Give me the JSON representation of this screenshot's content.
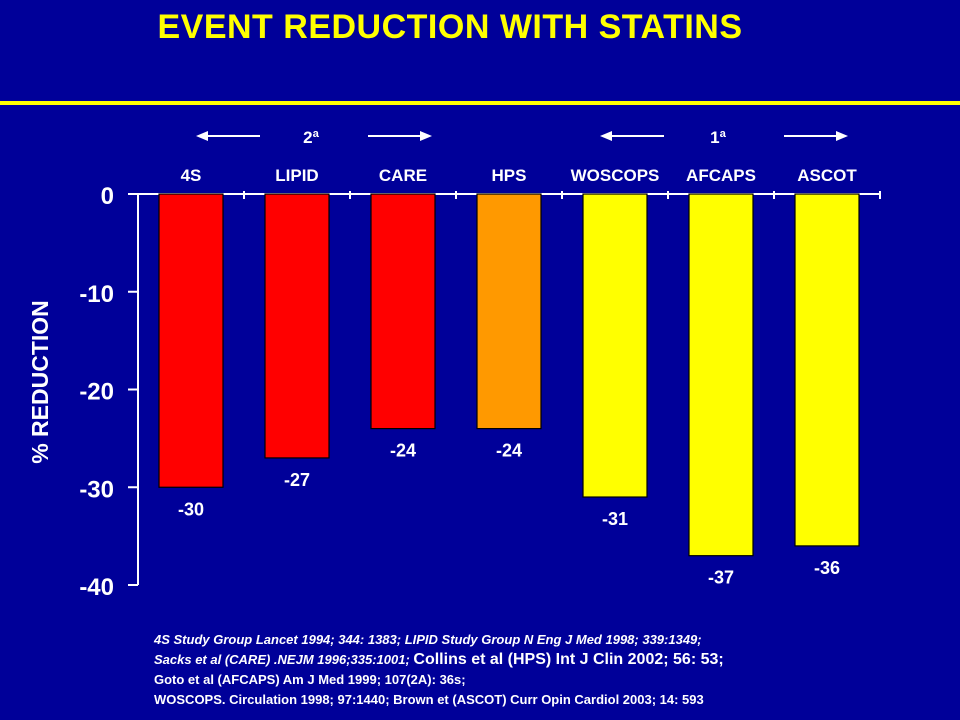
{
  "title": "EVENT REDUCTION WITH STATINS",
  "colors": {
    "background": "#000099",
    "title": "#ffff00",
    "secondary_prevention": "#ff0000",
    "hps": "#ff9900",
    "primary_prevention": "#ffff00",
    "text": "#ffffff"
  },
  "groups": {
    "secondary": "2ª",
    "primary": "1ª"
  },
  "chart_data": {
    "type": "bar",
    "categories": [
      "4S",
      "LIPID",
      "CARE",
      "HPS",
      "WOSCOPS",
      "AFCAPS",
      "ASCOT"
    ],
    "values": [
      -30,
      -27,
      -24,
      -24,
      -31,
      -37,
      -36
    ],
    "data_labels": [
      "-30",
      "-27",
      "-24",
      "-24",
      "-31",
      "-37",
      "-36"
    ],
    "bar_colors": [
      "#ff0000",
      "#ff0000",
      "#ff0000",
      "#ff9900",
      "#ffff00",
      "#ffff00",
      "#ffff00"
    ],
    "ylabel": "% REDUCTION",
    "ylim": [
      -40,
      0
    ],
    "yticks": [
      0,
      -10,
      -20,
      -30,
      -40
    ],
    "ytick_labels": [
      "0",
      "-10",
      "-20",
      "-30",
      "-40"
    ],
    "grid": false,
    "category_axis_position": "top"
  },
  "references": {
    "line1": "4S Study Group Lancet 1994; 344: 1383; LIPID  Study Group N Eng J Med 1998; 339:1349;",
    "line2a": " Sacks et al (CARE) .NEJM 1996;335:1001; ",
    "line2b": "Collins et al (HPS) Int J Clin 2002; 56: 53;",
    "line3": "Goto et al (AFCAPS) Am J Med 1999; 107(2A): 36s;",
    "line4": "WOSCOPS. Circulation 1998; 97:1440; Brown et (ASCOT) Curr Opin  Cardiol 2003; 14: 593"
  }
}
